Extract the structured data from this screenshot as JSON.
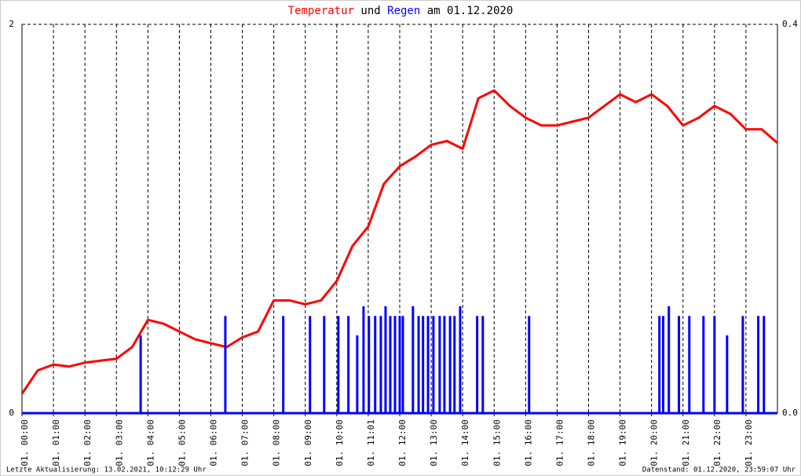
{
  "chart_data": {
    "type": "line",
    "title_joiner": "und",
    "title_suffix": "am 01.12.2020",
    "footer_left": "Letzte Aktualisierung: 13.02.2021, 10:12:29 Uhr",
    "footer_right": "Datenstand: 01.12.2020, 23:59:07 Uhr",
    "xlim": [
      0,
      24
    ],
    "xticks": [
      {
        "value": 0,
        "label": "01. 00:00"
      },
      {
        "value": 1,
        "label": "01. 01:00"
      },
      {
        "value": 2,
        "label": "01. 02:00"
      },
      {
        "value": 3,
        "label": "01. 03:00"
      },
      {
        "value": 4,
        "label": "01. 04:00"
      },
      {
        "value": 5,
        "label": "01. 05:00"
      },
      {
        "value": 6,
        "label": "01. 06:00"
      },
      {
        "value": 7,
        "label": "01. 07:00"
      },
      {
        "value": 8,
        "label": "01. 08:00"
      },
      {
        "value": 9,
        "label": "01. 09:00"
      },
      {
        "value": 10,
        "label": "01. 10:00"
      },
      {
        "value": 11,
        "label": "01. 11:01"
      },
      {
        "value": 12,
        "label": "01. 12:00"
      },
      {
        "value": 13,
        "label": "01. 13:00"
      },
      {
        "value": 14,
        "label": "01. 14:00"
      },
      {
        "value": 15,
        "label": "01. 15:00"
      },
      {
        "value": 16,
        "label": "01. 16:00"
      },
      {
        "value": 17,
        "label": "01. 17:00"
      },
      {
        "value": 18,
        "label": "01. 18:00"
      },
      {
        "value": 19,
        "label": "01. 19:00"
      },
      {
        "value": 20,
        "label": "01. 20:00"
      },
      {
        "value": 21,
        "label": "01. 21:00"
      },
      {
        "value": 22,
        "label": "01. 22:00"
      },
      {
        "value": 23,
        "label": "01. 23:00"
      }
    ],
    "ylim": [
      0,
      2
    ],
    "yticks": [
      0,
      2
    ],
    "y2lim": [
      0,
      0.4
    ],
    "y2ticks": [
      {
        "value": 0,
        "label": "0.0"
      },
      0.4
    ],
    "grid": true,
    "series": [
      {
        "name": "Temperatur",
        "color": "#ff0000",
        "axis": "y",
        "x": [
          0,
          0.5,
          1,
          1.5,
          2,
          2.5,
          3,
          3.5,
          4,
          4.5,
          5,
          5.5,
          6,
          6.5,
          7,
          7.5,
          8,
          8.5,
          9,
          9.5,
          10,
          10.5,
          11,
          11.5,
          12,
          12.5,
          13,
          13.5,
          14,
          14.5,
          15,
          15.5,
          16,
          16.5,
          17,
          17.5,
          18,
          18.5,
          19,
          19.5,
          20,
          20.5,
          21,
          21.5,
          22,
          22.5,
          23,
          23.5,
          24
        ],
        "values": [
          0.1,
          0.22,
          0.25,
          0.24,
          0.26,
          0.27,
          0.28,
          0.34,
          0.48,
          0.46,
          0.42,
          0.38,
          0.36,
          0.34,
          0.39,
          0.42,
          0.58,
          0.58,
          0.56,
          0.58,
          0.68,
          0.86,
          0.96,
          1.18,
          1.27,
          1.32,
          1.38,
          1.4,
          1.36,
          1.62,
          1.66,
          1.58,
          1.52,
          1.48,
          1.48,
          1.5,
          1.52,
          1.58,
          1.64,
          1.6,
          1.64,
          1.58,
          1.48,
          1.52,
          1.58,
          1.54,
          1.46,
          1.46,
          1.39
        ]
      },
      {
        "name": "Regen",
        "color": "#0000ff",
        "axis": "y2",
        "x": [
          3.77,
          6.46,
          8.3,
          9.15,
          9.6,
          10.05,
          10.37,
          10.65,
          10.85,
          11.02,
          11.22,
          11.4,
          11.55,
          11.7,
          11.85,
          12.0,
          12.1,
          12.42,
          12.6,
          12.74,
          12.9,
          13.07,
          13.27,
          13.42,
          13.6,
          13.74,
          13.92,
          14.46,
          14.64,
          16.11,
          20.25,
          20.37,
          20.55,
          20.87,
          21.2,
          21.65,
          22.0,
          22.4,
          22.9,
          23.39,
          23.57
        ],
        "values": [
          0.08,
          0.1,
          0.1,
          0.1,
          0.1,
          0.1,
          0.1,
          0.08,
          0.11,
          0.1,
          0.1,
          0.1,
          0.11,
          0.1,
          0.1,
          0.1,
          0.1,
          0.11,
          0.1,
          0.1,
          0.1,
          0.1,
          0.1,
          0.1,
          0.1,
          0.1,
          0.11,
          0.1,
          0.1,
          0.1,
          0.1,
          0.1,
          0.11,
          0.1,
          0.1,
          0.1,
          0.1,
          0.08,
          0.1,
          0.1,
          0.1
        ]
      }
    ]
  }
}
